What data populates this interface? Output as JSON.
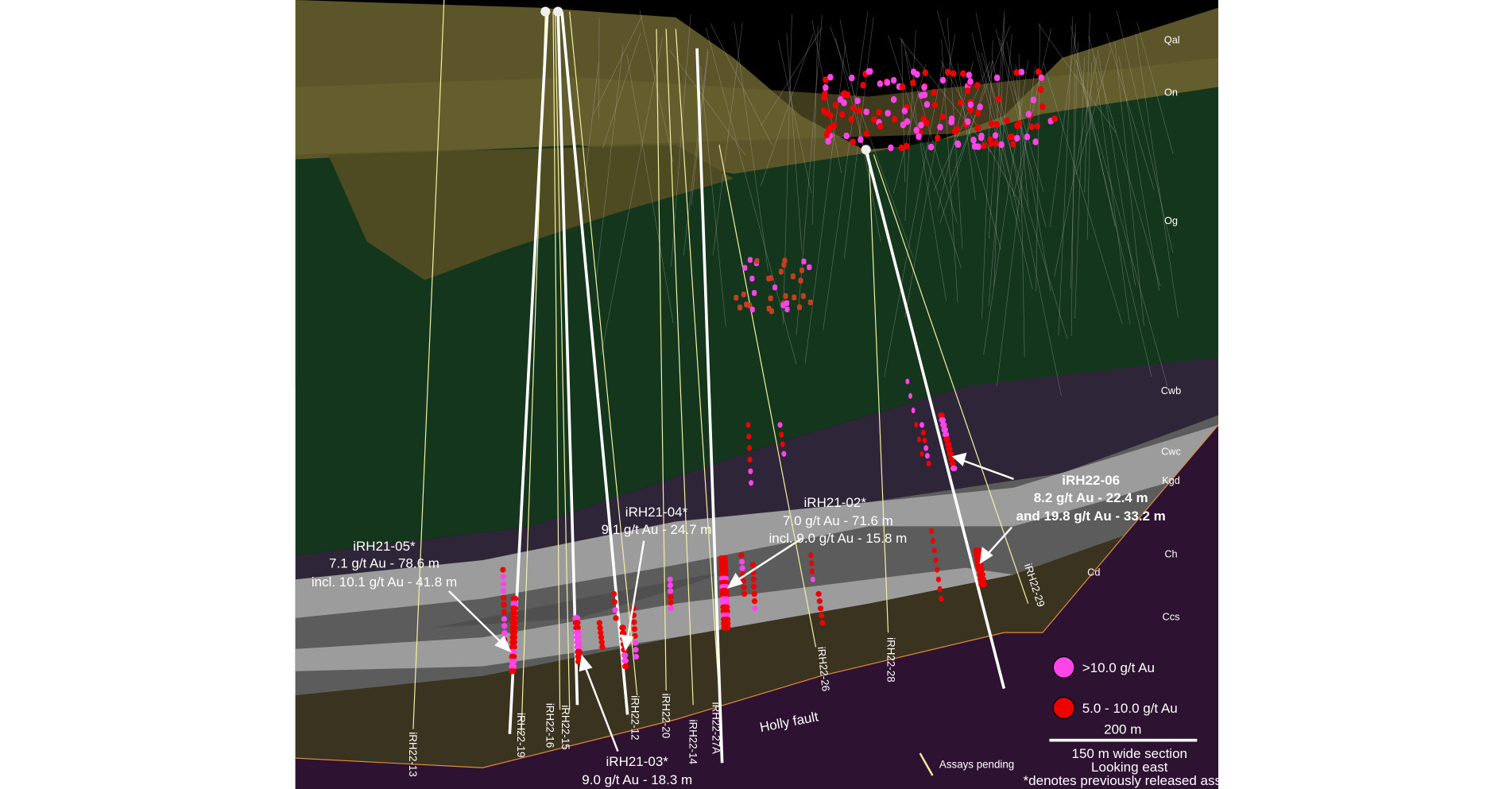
{
  "colors": {
    "sky": "#000000",
    "qal_on": "#5b5529",
    "og": "#14361c",
    "cwb": "#2f2539",
    "light_band": "#9c9c9c",
    "gray_band": "#5a5a5a",
    "cd_ch": "#3a3320",
    "ccs": "#2e1232",
    "fault": "#e08a3a",
    "high_grade": "#ff44e8",
    "mid_grade": "#ee0000",
    "assay_pending": "#f2f0a0"
  },
  "layers": [
    "Qal",
    "On",
    "Og",
    "Cwb",
    "Cwc",
    "Kgd",
    "Ch",
    "Cd",
    "Ccs"
  ],
  "fault_label": "Holly fault",
  "drill_holes": [
    "iRH22-13",
    "iRH22-19",
    "iRH22-16",
    "iRH22-15",
    "iRH22-12",
    "iRH22-20",
    "iRH22-14",
    "iRH22-27A",
    "iRH22-26",
    "iRH22-28",
    "iRH22-29"
  ],
  "callouts": {
    "rh21_05": {
      "title": "iRH21-05*",
      "line1": "7.1 g/t Au - 78.6 m",
      "line2": "incl. 10.1 g/t Au - 41.8 m"
    },
    "rh21_04": {
      "title": "iRH21-04*",
      "line1": "9.1 g/t Au - 24.7 m"
    },
    "rh21_02": {
      "title": "iRH21-02*",
      "line1": "7.0 g/t Au - 71.6 m",
      "line2": "incl. 9.0 g/t Au - 15.8 m"
    },
    "rh22_06": {
      "title": "iRH22-06",
      "line1": "8.2 g/t Au - 22.4 m",
      "line2": "and 19.8 g/t Au - 33.2 m"
    },
    "rh21_03": {
      "title": "iRH21-03*",
      "line1": "9.0 g/t Au - 18.3 m"
    }
  },
  "legend": {
    "high": ">10.0 g/t Au",
    "mid": "5.0 - 10.0 g/t Au",
    "scale": "200 m",
    "pending": "Assays pending"
  },
  "notes": [
    "150 m wide section",
    "Looking east",
    "*denotes previously released assay"
  ]
}
